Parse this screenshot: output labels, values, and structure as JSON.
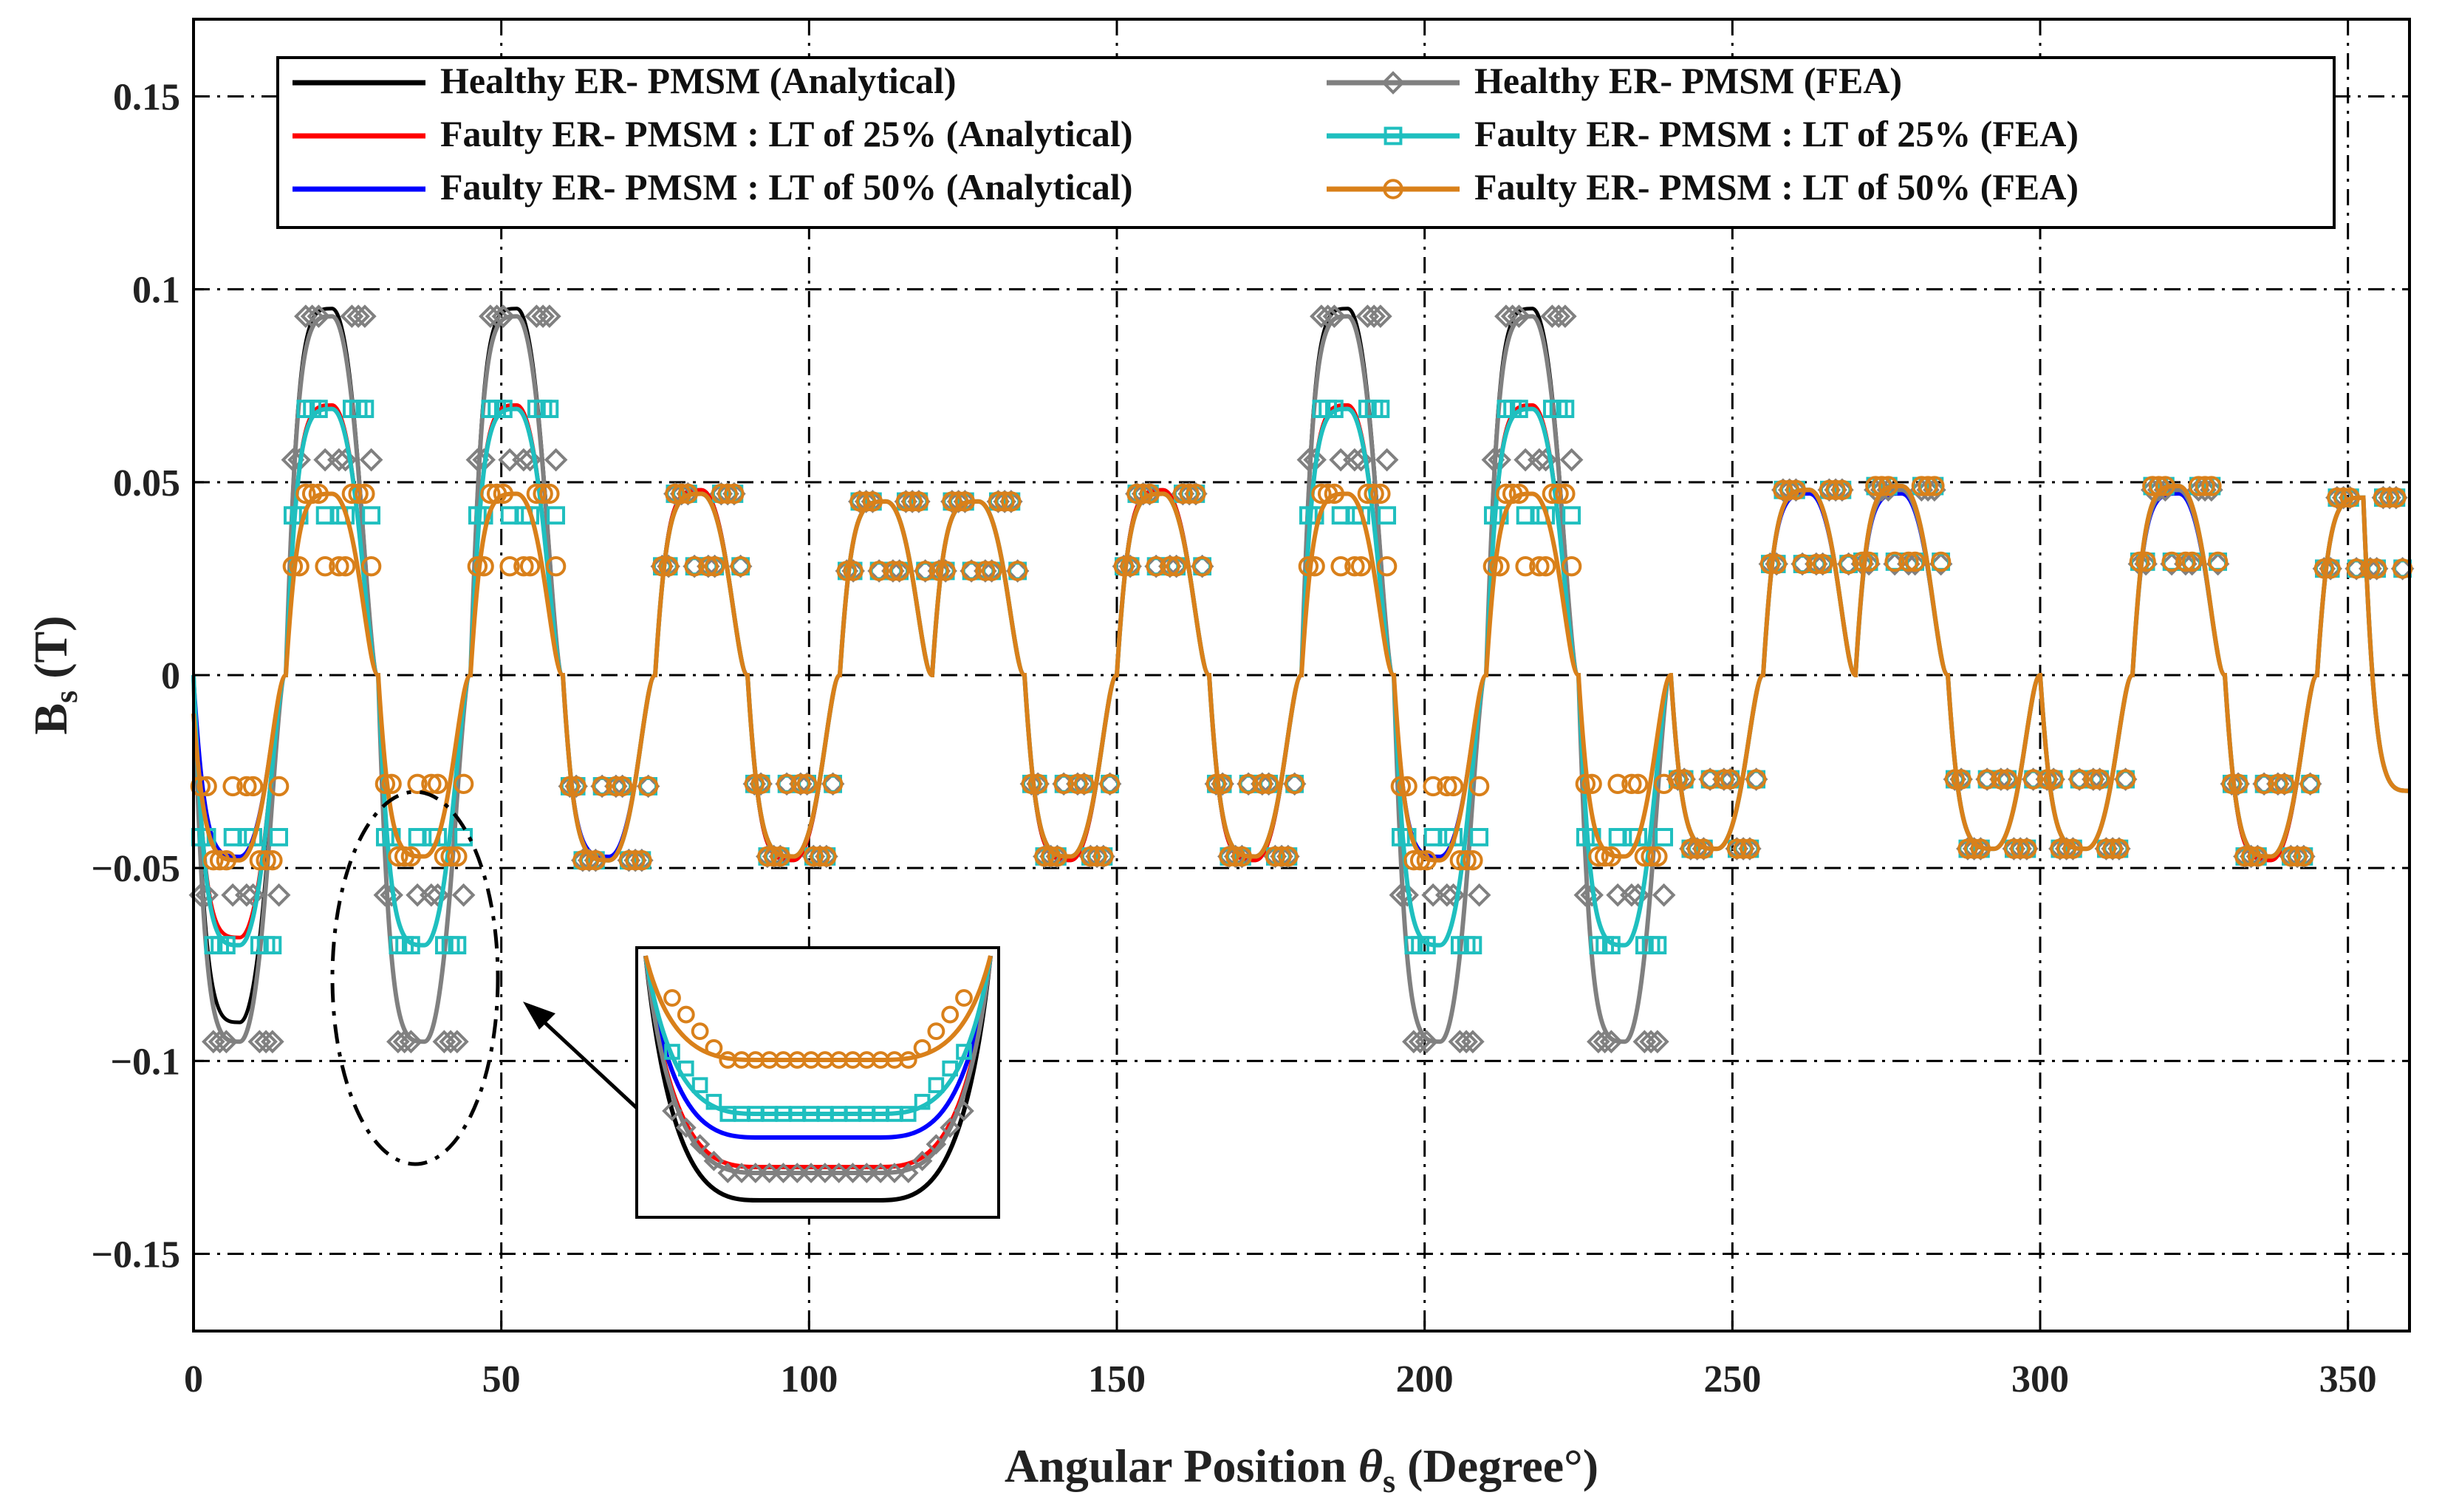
{
  "chart_data": {
    "type": "line",
    "title": "",
    "xlabel": "Angular Position",
    "xlabel_symbol": "θ",
    "xlabel_subscript": "s",
    "xlabel_unit": "(Degree°)",
    "ylabel": "B",
    "ylabel_subscript": "s",
    "ylabel_unit": "(T)",
    "xlim": [
      0,
      360
    ],
    "ylim": [
      -0.17,
      0.17
    ],
    "xticks": [
      0,
      50,
      100,
      150,
      200,
      250,
      300,
      350
    ],
    "xtick_labels": [
      "0",
      "50",
      "100",
      "150",
      "200",
      "250",
      "300",
      "350"
    ],
    "yticks": [
      0.15,
      0.1,
      0.05,
      0,
      -0.05,
      -0.1,
      -0.15
    ],
    "ytick_labels": [
      "0.15",
      "0.1",
      "0.05",
      "0",
      "−0.05",
      "−0.1",
      "−0.15"
    ],
    "grid": true,
    "legend_position": "top",
    "x": [
      0,
      7.5,
      15,
      22.5,
      30,
      37.5,
      45,
      52.5,
      60,
      67.5,
      75,
      82.5,
      90,
      97.5,
      105,
      112.5,
      120,
      127.5,
      135,
      142.5,
      150,
      157.5,
      165,
      172.5,
      180,
      187.5,
      195,
      202.5,
      210,
      217.5,
      225,
      232.5,
      240,
      247.5,
      255,
      262.5,
      270,
      277.5,
      285,
      292.5,
      300,
      307.5,
      315,
      322.5,
      330,
      337.5,
      345,
      352.5,
      360
    ],
    "series": [
      {
        "name": "Healthy ER- PMSM (Analytical)",
        "color": "#000000",
        "marker": "none",
        "values": [
          0,
          -0.09,
          0,
          0.095,
          0,
          -0.095,
          0,
          0.095,
          0,
          -0.048,
          0,
          0.048,
          0,
          -0.048,
          0,
          0.045,
          0,
          0.045,
          0,
          -0.048,
          0,
          0.048,
          0,
          -0.048,
          0,
          0.095,
          0,
          -0.095,
          0,
          0.095,
          0,
          -0.095,
          0,
          -0.045,
          0,
          0.048,
          0,
          0.048,
          0,
          -0.045,
          0,
          -0.045,
          0,
          0.048,
          0,
          -0.048,
          0,
          0.046,
          -0.03
        ]
      },
      {
        "name": "Faulty ER- PMSM : LT of 25% (Analytical)",
        "color": "#ff0000",
        "marker": "none",
        "values": [
          0,
          -0.068,
          0,
          0.07,
          0,
          -0.07,
          0,
          0.07,
          0,
          -0.048,
          0,
          0.048,
          0,
          -0.048,
          0,
          0.045,
          0,
          0.045,
          0,
          -0.048,
          0,
          0.048,
          0,
          -0.048,
          0,
          0.07,
          0,
          -0.07,
          0,
          0.07,
          0,
          -0.07,
          0,
          -0.045,
          0,
          0.048,
          0,
          0.048,
          0,
          -0.045,
          0,
          -0.045,
          0,
          0.048,
          0,
          -0.048,
          0,
          0.046,
          -0.03
        ]
      },
      {
        "name": "Faulty ER- PMSM : LT of 50% (Analytical)",
        "color": "#0000ff",
        "marker": "none",
        "values": [
          0,
          -0.047,
          0,
          0.047,
          0,
          -0.047,
          0,
          0.047,
          0,
          -0.047,
          0,
          0.047,
          0,
          -0.047,
          0,
          0.045,
          0,
          0.045,
          0,
          -0.047,
          0,
          0.047,
          0,
          -0.047,
          0,
          0.047,
          0,
          -0.047,
          0,
          0.047,
          0,
          -0.047,
          0,
          -0.045,
          0,
          0.047,
          0,
          0.047,
          0,
          -0.045,
          0,
          -0.045,
          0,
          0.047,
          0,
          -0.047,
          0,
          0.046,
          -0.03
        ]
      },
      {
        "name": "Healthy ER- PMSM (FEA)",
        "color": "#808080",
        "marker": "diamond",
        "values": [
          0,
          -0.095,
          0,
          0.093,
          0,
          -0.095,
          0,
          0.093,
          0,
          -0.048,
          0,
          0.047,
          0,
          -0.047,
          0,
          0.045,
          0,
          0.045,
          0,
          -0.047,
          0,
          0.047,
          0,
          -0.047,
          0,
          0.093,
          0,
          -0.095,
          0,
          0.093,
          0,
          -0.095,
          0,
          -0.045,
          0,
          0.048,
          0,
          0.048,
          0,
          -0.045,
          0,
          -0.045,
          0,
          0.048,
          0,
          -0.047,
          0,
          0.046,
          -0.03
        ]
      },
      {
        "name": "Faulty ER- PMSM : LT of 25% (FEA)",
        "color": "#1fbfbf",
        "marker": "square",
        "values": [
          0,
          -0.07,
          0,
          0.069,
          0,
          -0.07,
          0,
          0.069,
          0,
          -0.048,
          0,
          0.047,
          0,
          -0.047,
          0,
          0.045,
          0,
          0.045,
          0,
          -0.047,
          0,
          0.047,
          0,
          -0.047,
          0,
          0.069,
          0,
          -0.07,
          0,
          0.069,
          0,
          -0.07,
          0,
          -0.045,
          0,
          0.048,
          0,
          0.049,
          0,
          -0.045,
          0,
          -0.045,
          0,
          0.049,
          0,
          -0.047,
          0,
          0.046,
          -0.03
        ]
      },
      {
        "name": "Faulty ER- PMSM : LT of 50% (FEA)",
        "color": "#d9801a",
        "marker": "circle",
        "values": [
          -0.01,
          -0.048,
          0,
          0.047,
          0,
          -0.047,
          0,
          0.047,
          0,
          -0.048,
          0,
          0.047,
          0,
          -0.047,
          0,
          0.045,
          0,
          0.045,
          0,
          -0.047,
          0,
          0.047,
          0,
          -0.047,
          0,
          0.047,
          0,
          -0.048,
          0,
          0.047,
          0,
          -0.047,
          0,
          -0.045,
          0,
          0.048,
          0,
          0.049,
          0,
          -0.045,
          0,
          -0.045,
          0,
          0.049,
          0,
          -0.047,
          0,
          0.046,
          -0.03
        ]
      }
    ],
    "annotations": [
      {
        "type": "ellipse",
        "x": 37.5,
        "y": -0.075,
        "target": "inset"
      },
      {
        "type": "inset",
        "description_values": "zoom of trough near 37.5°"
      }
    ]
  }
}
